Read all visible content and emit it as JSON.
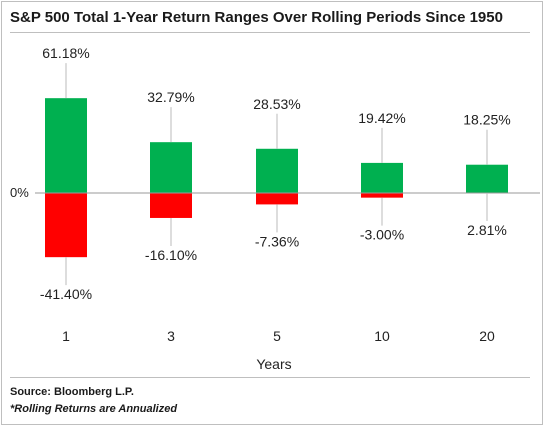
{
  "chart_data": {
    "type": "bar",
    "title": "S&P 500 Total 1-Year Return Ranges Over Rolling Periods Since 1950",
    "xlabel": "Years",
    "ylabel": "",
    "categories": [
      "1",
      "3",
      "5",
      "10",
      "20"
    ],
    "series": [
      {
        "name": "",
        "values": [
          61.18,
          32.79,
          28.53,
          19.42,
          18.25
        ],
        "labels": [
          "61.18%",
          "32.79%",
          "28.53%",
          "19.42%",
          "18.25%"
        ],
        "color": "#00b050"
      },
      {
        "name": "",
        "values": [
          -41.4,
          -16.1,
          -7.36,
          -3.0,
          2.81
        ],
        "labels": [
          "-41.40%",
          "-16.10%",
          "-7.36%",
          "-3.00%",
          "2.81%"
        ],
        "color": "#ff0000"
      }
    ],
    "zero_label": "0%",
    "grid": false
  },
  "footer": {
    "source": "Source:  Bloomberg L.P.",
    "note": "*Rolling Returns are Annualized"
  }
}
